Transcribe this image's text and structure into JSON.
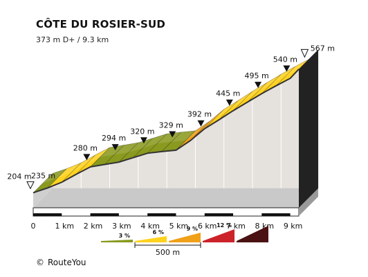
{
  "chart_data": {
    "type": "area",
    "title": "CÔTE DU ROSIER-SUD",
    "subtitle": "373 m D+ / 9.3 km",
    "x_unit": "km",
    "y_unit": "m",
    "profile_km": [
      0,
      0.5,
      1,
      1.5,
      2,
      2.5,
      3,
      3.5,
      4,
      4.5,
      5,
      5.5,
      6,
      6.5,
      7,
      7.5,
      8,
      8.5,
      9,
      9.3
    ],
    "profile_m": [
      204,
      218,
      235,
      258,
      280,
      287,
      294,
      307,
      320,
      325,
      329,
      357,
      392,
      418,
      445,
      470,
      495,
      518,
      540,
      567
    ],
    "segment_gradient_pct": [
      3,
      4,
      4,
      4,
      2,
      2,
      3,
      3,
      1,
      1,
      6,
      7,
      5,
      5,
      5,
      5,
      5,
      4,
      9
    ],
    "elevation_labels": [
      {
        "km": 0,
        "label": "204 m",
        "marker": "start"
      },
      {
        "km": 0.5,
        "label": "235 m",
        "marker": "none"
      },
      {
        "km": 1.5,
        "label": "280 m",
        "marker": "tick"
      },
      {
        "km": 2.5,
        "label": "294 m",
        "marker": "tick"
      },
      {
        "km": 3.5,
        "label": "320 m",
        "marker": "tick"
      },
      {
        "km": 4.5,
        "label": "329 m",
        "marker": "tick"
      },
      {
        "km": 5.5,
        "label": "392 m",
        "marker": "tick"
      },
      {
        "km": 6.5,
        "label": "445 m",
        "marker": "tick"
      },
      {
        "km": 7.5,
        "label": "495 m",
        "marker": "tick"
      },
      {
        "km": 8.5,
        "label": "540 m",
        "marker": "tick"
      },
      {
        "km": 9.3,
        "label": "567 m",
        "marker": "end"
      }
    ],
    "x_ticks": [
      {
        "km": 0,
        "label": "0"
      },
      {
        "km": 1,
        "label": "1 km"
      },
      {
        "km": 2,
        "label": "2 km"
      },
      {
        "km": 3,
        "label": "3 km"
      },
      {
        "km": 4,
        "label": "4 km"
      },
      {
        "km": 5,
        "label": "5 km"
      },
      {
        "km": 6,
        "label": "6 km"
      },
      {
        "km": 7,
        "label": "7 km"
      },
      {
        "km": 8,
        "label": "8 km"
      },
      {
        "km": 9,
        "label": "9 km"
      }
    ],
    "legend": [
      {
        "label": "3 %",
        "color": "#8a9a1f"
      },
      {
        "label": "6 %",
        "color": "#ffd21f"
      },
      {
        "label": "9 %",
        "color": "#f0a019"
      },
      {
        "label": "12 %",
        "color": "#cc2229"
      },
      {
        "label": "",
        "color": "#4a1212"
      }
    ],
    "scale_label": "500 m",
    "colors": {
      "green": "#8a9a1f",
      "yellow": "#ffd21f",
      "orange": "#f0a019",
      "red": "#cc2229",
      "darkred": "#4a1212",
      "side": "#e5e1dd",
      "base_top": "#c9c9c9",
      "base_front": "#7a7a7a"
    }
  },
  "footer": {
    "copyright_symbol": "©",
    "copyright_text": "RouteYou"
  }
}
